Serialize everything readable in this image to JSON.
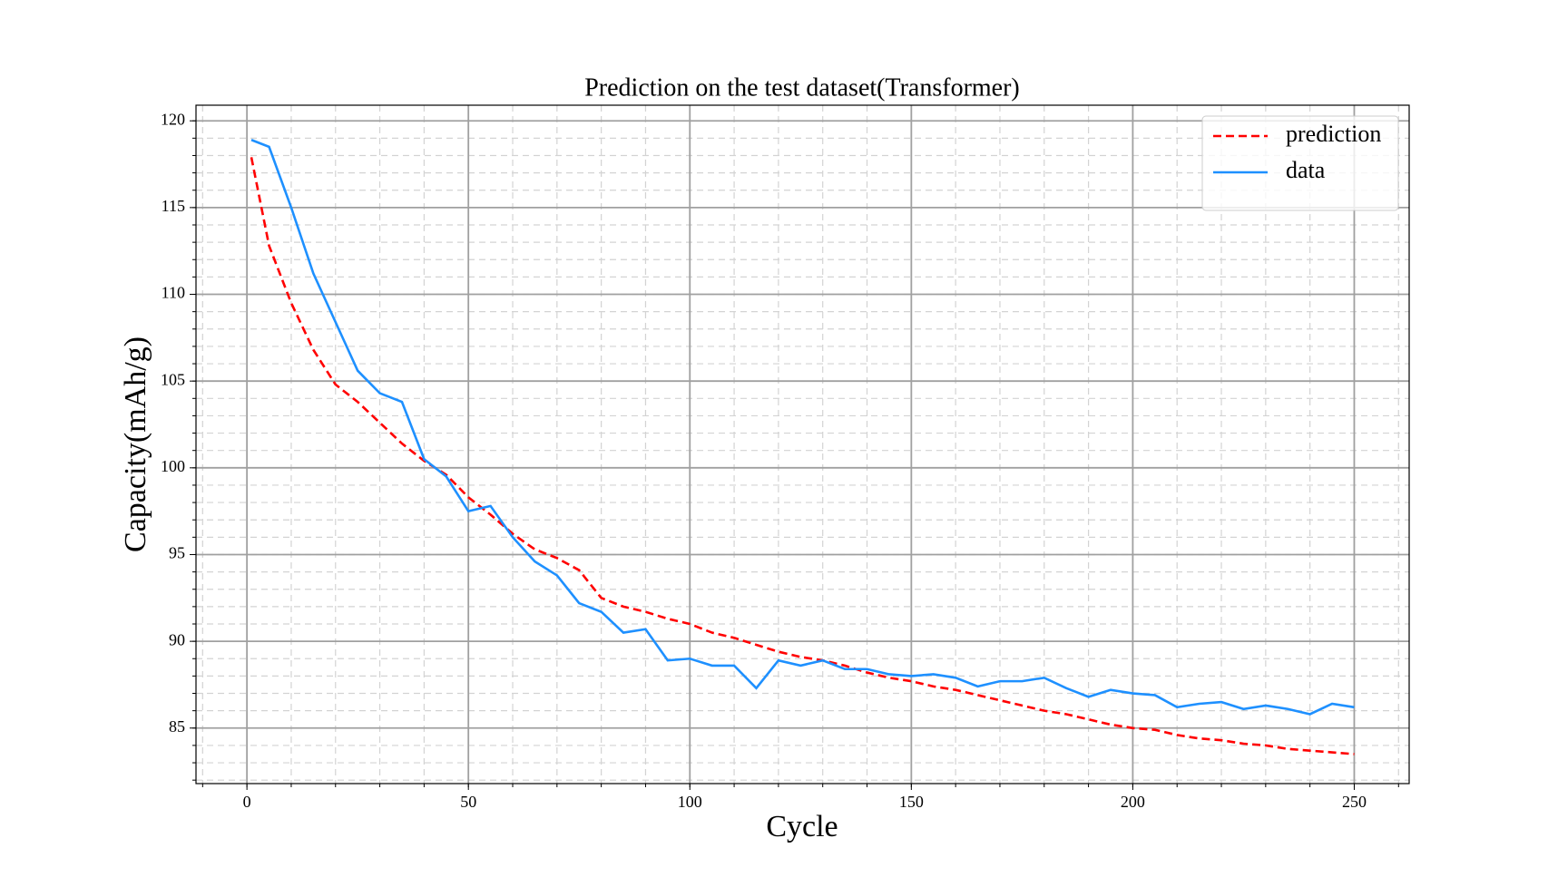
{
  "chart_data": {
    "type": "line",
    "title": "Prediction on the test dataset(Transformer)",
    "x_label": "Cycle",
    "y_label": "Capacity(mAh/g)",
    "x": [
      1,
      5,
      10,
      15,
      20,
      25,
      30,
      35,
      40,
      45,
      50,
      55,
      60,
      65,
      70,
      75,
      80,
      85,
      90,
      95,
      100,
      105,
      110,
      115,
      120,
      125,
      130,
      135,
      140,
      145,
      150,
      155,
      160,
      165,
      170,
      175,
      180,
      185,
      190,
      195,
      200,
      205,
      210,
      215,
      220,
      225,
      230,
      235,
      240,
      245,
      250
    ],
    "series": [
      {
        "name": "prediction",
        "color": "#ff0000",
        "dash": true,
        "values": [
          117.9,
          112.8,
          109.5,
          106.8,
          104.8,
          103.8,
          102.6,
          101.4,
          100.4,
          99.6,
          98.3,
          97.3,
          96.2,
          95.3,
          94.8,
          94.1,
          92.5,
          92.0,
          91.7,
          91.3,
          91.0,
          90.5,
          90.2,
          89.8,
          89.4,
          89.1,
          88.9,
          88.6,
          88.2,
          87.9,
          87.7,
          87.4,
          87.2,
          86.9,
          86.6,
          86.3,
          86.0,
          85.8,
          85.5,
          85.2,
          85.0,
          84.9,
          84.6,
          84.4,
          84.3,
          84.1,
          84.0,
          83.8,
          83.7,
          83.6,
          83.5
        ]
      },
      {
        "name": "data",
        "color": "#1e90ff",
        "dash": false,
        "values": [
          118.9,
          118.5,
          115.0,
          111.2,
          108.4,
          105.6,
          104.3,
          103.8,
          100.5,
          99.5,
          97.5,
          97.8,
          96.0,
          94.6,
          93.8,
          92.2,
          91.7,
          90.5,
          90.7,
          88.9,
          89.0,
          88.6,
          88.6,
          87.3,
          88.9,
          88.6,
          88.9,
          88.4,
          88.4,
          88.1,
          88.0,
          88.1,
          87.9,
          87.4,
          87.7,
          87.7,
          87.9,
          87.3,
          86.8,
          87.2,
          87.0,
          86.9,
          86.2,
          86.4,
          86.5,
          86.1,
          86.3,
          86.1,
          85.8,
          86.4,
          86.2
        ]
      }
    ],
    "xlim": [
      -11.5,
      262.4
    ],
    "ylim": [
      81.8,
      120.9
    ],
    "xticks": [
      0,
      50,
      100,
      150,
      200,
      250
    ],
    "yticks": [
      85,
      90,
      95,
      100,
      105,
      110,
      115,
      120
    ],
    "grid": true,
    "minor_grid_step": {
      "x": 10,
      "y": 1
    },
    "legend": "upper right"
  }
}
